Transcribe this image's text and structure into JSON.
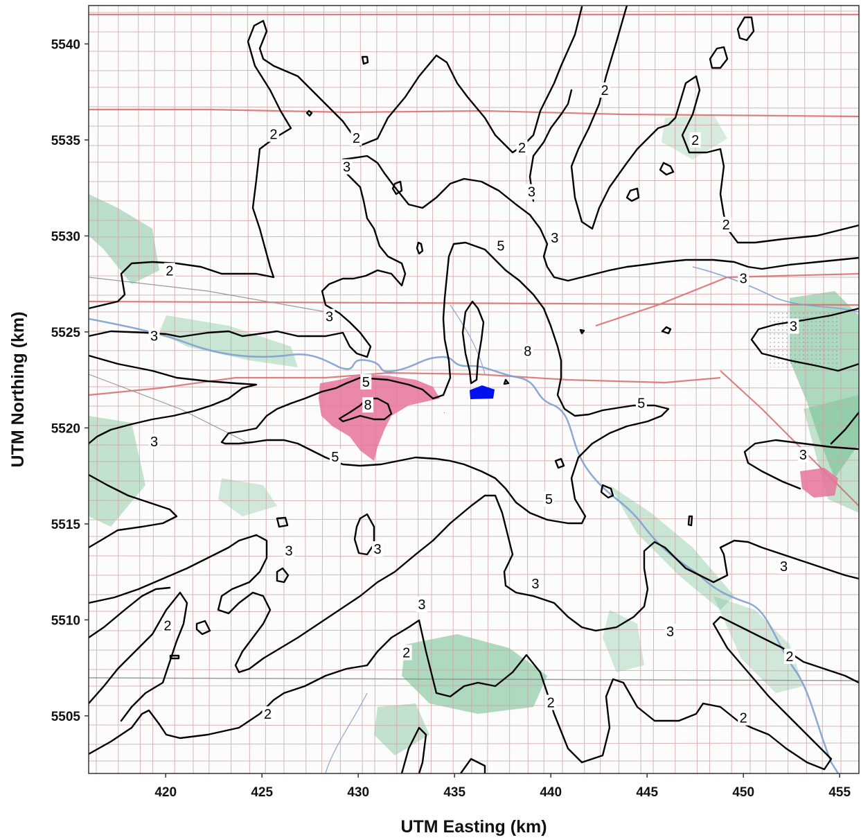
{
  "chart_data": {
    "type": "contour map",
    "xlabel": "UTM Easting (km)",
    "ylabel": "UTM Northing (km)",
    "x_ticks": [
      420,
      425,
      430,
      435,
      440,
      445,
      450,
      455
    ],
    "y_ticks": [
      5505,
      5510,
      5515,
      5520,
      5525,
      5530,
      5535,
      5540
    ],
    "xlim": [
      416,
      456
    ],
    "ylim": [
      5502,
      5542
    ],
    "contour_levels": [
      2,
      3,
      5,
      8
    ],
    "contour_labels": [
      {
        "text": "2",
        "x": 425.6,
        "y": 5535.3
      },
      {
        "text": "2",
        "x": 429.9,
        "y": 5535.1
      },
      {
        "text": "2",
        "x": 438.5,
        "y": 5534.6
      },
      {
        "text": "2",
        "x": 442.8,
        "y": 5537.6
      },
      {
        "text": "2",
        "x": 447.5,
        "y": 5535.0
      },
      {
        "text": "2",
        "x": 449.1,
        "y": 5530.6
      },
      {
        "text": "2",
        "x": 420.2,
        "y": 5528.2
      },
      {
        "text": "2",
        "x": 420.1,
        "y": 5509.7
      },
      {
        "text": "2",
        "x": 432.5,
        "y": 5508.3
      },
      {
        "text": "2",
        "x": 425.3,
        "y": 5505.1
      },
      {
        "text": "2",
        "x": 440.0,
        "y": 5505.7
      },
      {
        "text": "2",
        "x": 452.4,
        "y": 5508.1
      },
      {
        "text": "2",
        "x": 450.0,
        "y": 5504.9
      },
      {
        "text": "3",
        "x": 429.4,
        "y": 5533.6
      },
      {
        "text": "3",
        "x": 439.0,
        "y": 5532.3
      },
      {
        "text": "3",
        "x": 440.2,
        "y": 5529.9
      },
      {
        "text": "3",
        "x": 428.5,
        "y": 5525.8
      },
      {
        "text": "3",
        "x": 419.4,
        "y": 5524.8
      },
      {
        "text": "3",
        "x": 419.4,
        "y": 5519.3
      },
      {
        "text": "3",
        "x": 450.0,
        "y": 5527.8
      },
      {
        "text": "3",
        "x": 452.6,
        "y": 5525.3
      },
      {
        "text": "3",
        "x": 453.1,
        "y": 5518.6
      },
      {
        "text": "3",
        "x": 452.1,
        "y": 5512.8
      },
      {
        "text": "3",
        "x": 426.4,
        "y": 5513.6
      },
      {
        "text": "3",
        "x": 431.0,
        "y": 5513.7
      },
      {
        "text": "3",
        "x": 439.2,
        "y": 5511.9
      },
      {
        "text": "3",
        "x": 433.3,
        "y": 5510.8
      },
      {
        "text": "3",
        "x": 446.2,
        "y": 5509.4
      },
      {
        "text": "5",
        "x": 430.4,
        "y": 5522.4
      },
      {
        "text": "5",
        "x": 437.4,
        "y": 5529.5
      },
      {
        "text": "5",
        "x": 428.8,
        "y": 5518.5
      },
      {
        "text": "5",
        "x": 444.7,
        "y": 5521.3
      },
      {
        "text": "5",
        "x": 439.9,
        "y": 5516.3
      },
      {
        "text": "8",
        "x": 430.5,
        "y": 5521.2
      },
      {
        "text": "8",
        "x": 438.8,
        "y": 5524.0
      }
    ],
    "marker": {
      "color": "#0010ee",
      "x": 436.2,
      "y": 5521.8
    }
  },
  "colors": {
    "contour": "#000000",
    "urban_area": "#e6739a",
    "vegetation": "#6dbb8d",
    "river": "#7f9fd0",
    "major_road": "#d86a6a",
    "grid_road": "#cfa3a3",
    "source_marker": "#0010ee"
  }
}
